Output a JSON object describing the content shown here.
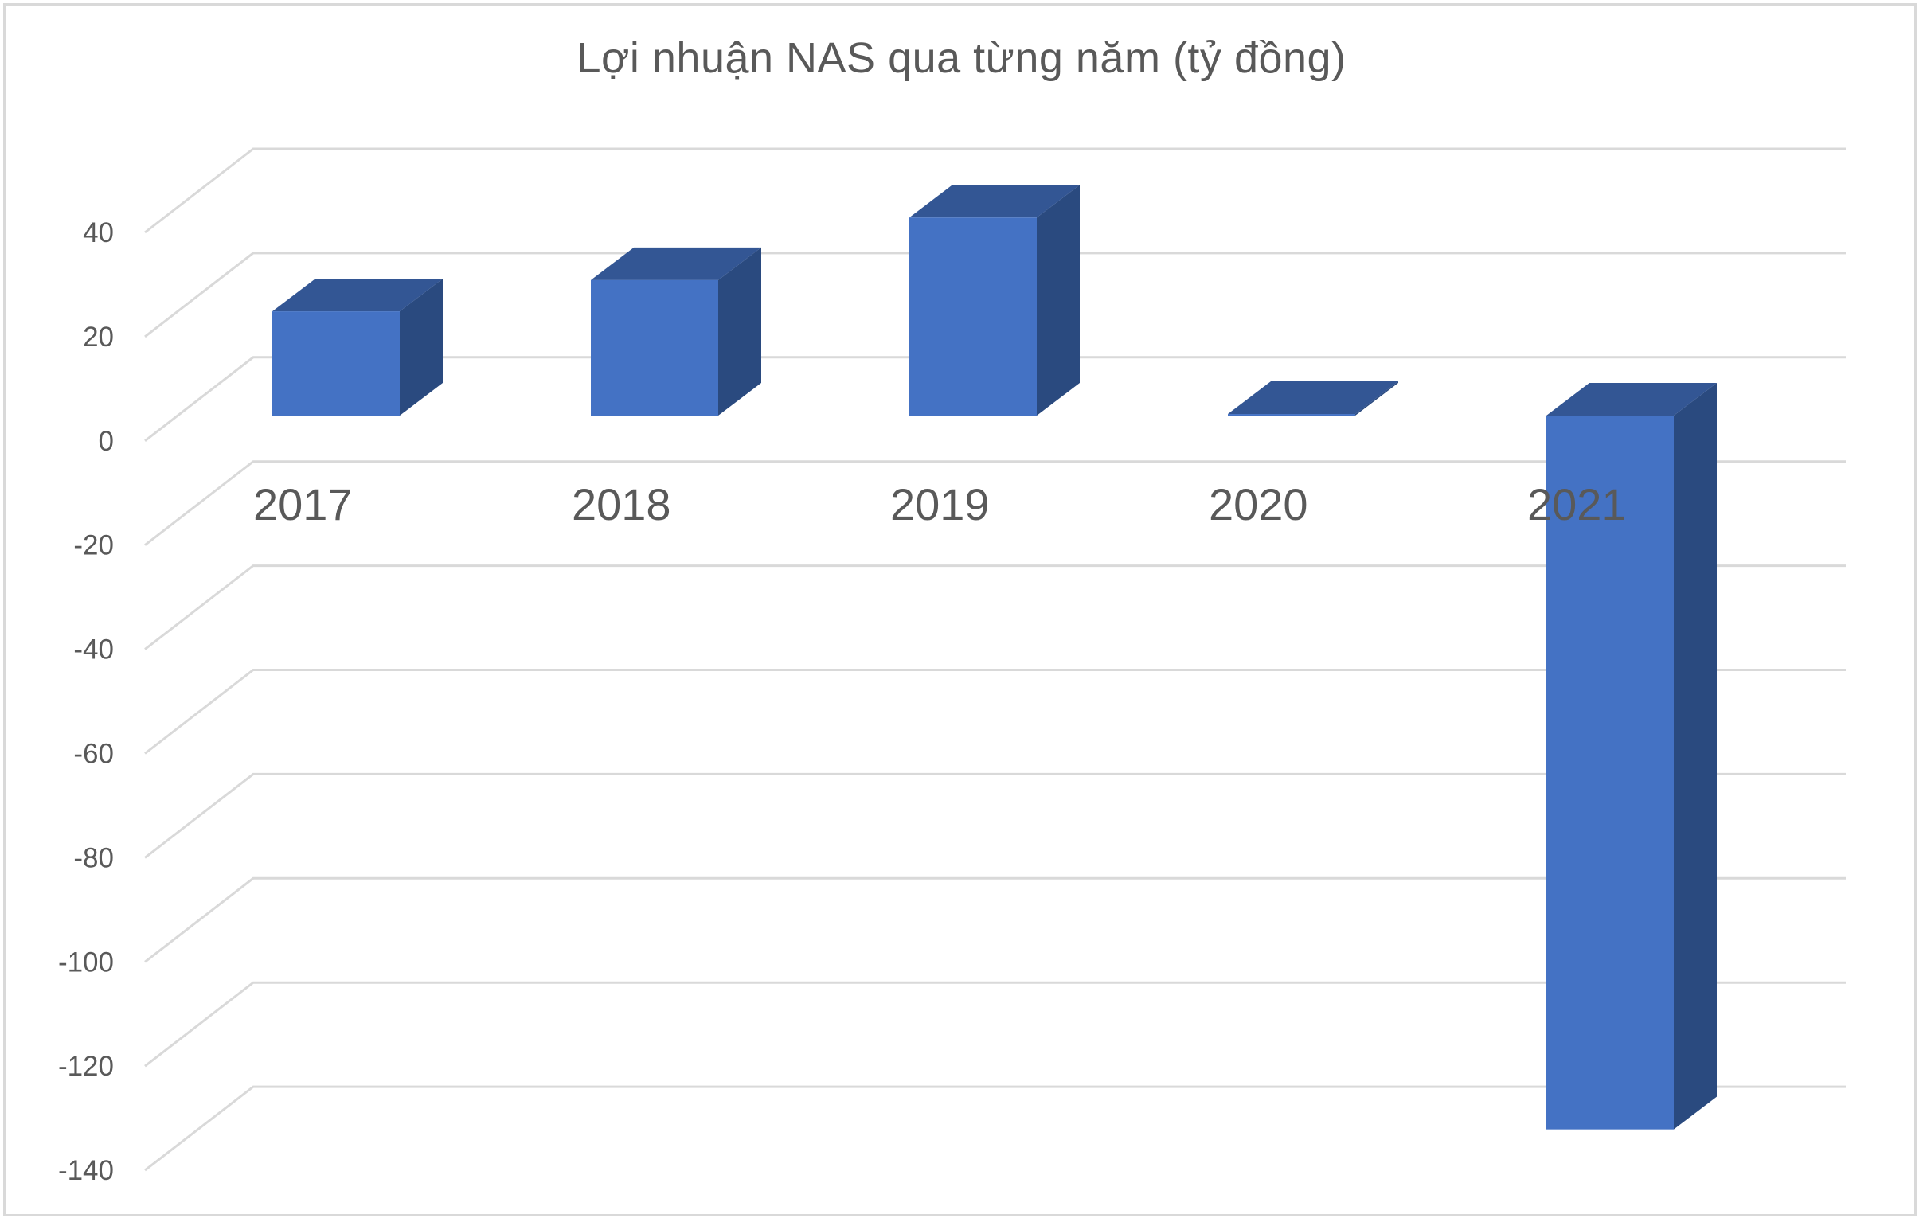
{
  "chart_data": {
    "type": "bar",
    "style": "3d-column",
    "title": "Lợi nhuận NAS qua từng năm (tỷ đồng)",
    "categories": [
      "2017",
      "2018",
      "2019",
      "2020",
      "2021"
    ],
    "values": [
      20,
      26,
      38,
      0.3,
      -137
    ],
    "xlabel": "",
    "ylabel": "",
    "ylim": [
      -140,
      40
    ],
    "yticks": [
      40,
      20,
      0,
      -20,
      -40,
      -60,
      -80,
      -100,
      -120,
      -140
    ],
    "grid": true,
    "legend": null,
    "colors": {
      "bar_front": "#4472c4",
      "bar_top": "#335694",
      "bar_side": "#2a4a7f",
      "gridline": "#d9d9d9",
      "text": "#595959",
      "border": "#d9d9d9"
    }
  }
}
